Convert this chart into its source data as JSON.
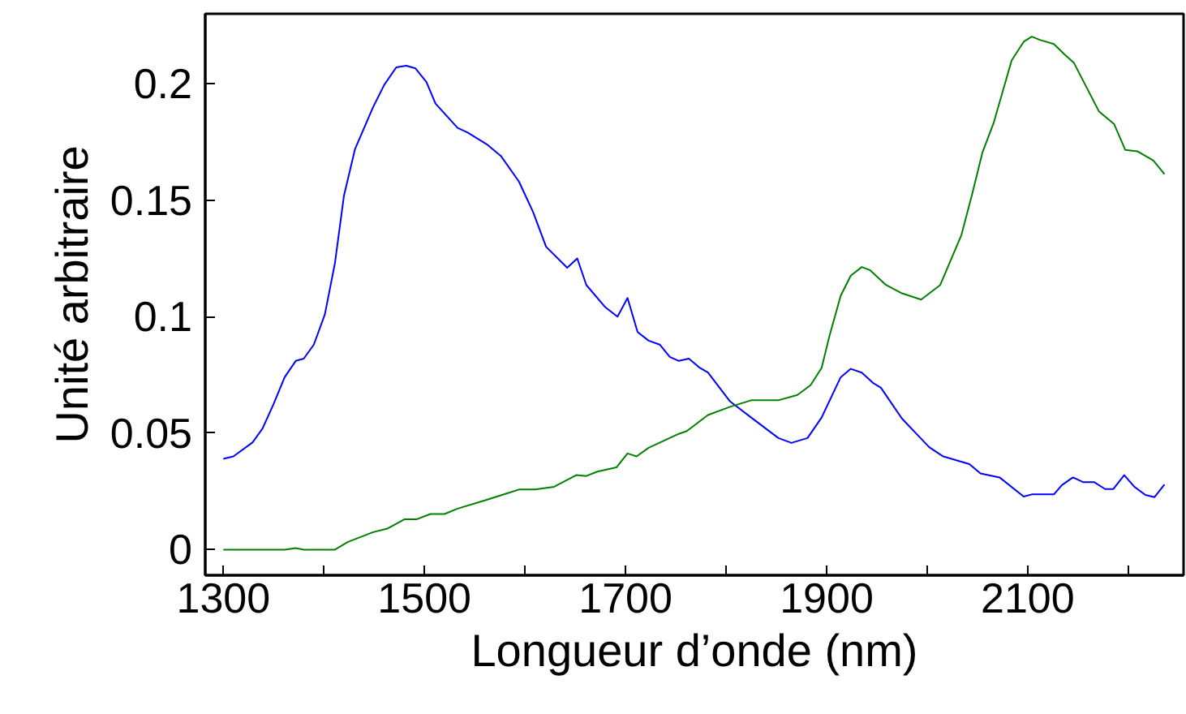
{
  "chart_data": {
    "type": "line",
    "xlabel": "Longueur d’onde (nm)",
    "ylabel": "Unité arbitraire",
    "xlim": [
      1282,
      2255
    ],
    "ylim": [
      -0.011,
      0.23
    ],
    "xticks": [
      1300,
      {
        "value": 1400,
        "label": null
      },
      1500,
      {
        "value": 1600,
        "label": null
      },
      1700,
      {
        "value": 1800,
        "label": null
      },
      1900,
      {
        "value": 2000,
        "label": null
      },
      2100,
      {
        "value": 2200,
        "label": null
      }
    ],
    "yticks": [
      0,
      0.05,
      0.1,
      0.15,
      0.2
    ],
    "grid": false,
    "marker": "none",
    "line_style": "solid",
    "series": [
      {
        "color": "#0000ff",
        "x": [
          1300,
          1310,
          1329,
          1339,
          1350,
          1361,
          1372,
          1380,
          1390,
          1401,
          1411,
          1420,
          1431,
          1449,
          1460,
          1472,
          1482,
          1491,
          1502,
          1511,
          1533,
          1543,
          1562,
          1576,
          1594,
          1608,
          1621,
          1642,
          1652,
          1661,
          1680,
          1692,
          1702,
          1712,
          1723,
          1734,
          1744,
          1753,
          1763,
          1774,
          1782,
          1804,
          1825,
          1852,
          1865,
          1881,
          1895,
          1914,
          1924,
          1935,
          1946,
          1954,
          1975,
          2002,
          2016,
          2042,
          2053,
          2072,
          2096,
          2104,
          2126,
          2134,
          2145,
          2155,
          2166,
          2177,
          2185,
          2196,
          2206,
          2217,
          2226,
          2236
        ],
        "values": [
          0.039,
          0.04,
          0.046,
          0.052,
          0.0625,
          0.074,
          0.081,
          0.082,
          0.088,
          0.101,
          0.123,
          0.152,
          0.172,
          0.19,
          0.1995,
          0.207,
          0.2077,
          0.2066,
          0.2007,
          0.1915,
          0.181,
          0.179,
          0.174,
          0.169,
          0.158,
          0.145,
          0.13,
          0.121,
          0.125,
          0.1136,
          0.104,
          0.1,
          0.108,
          0.0934,
          0.0897,
          0.088,
          0.0827,
          0.081,
          0.082,
          0.078,
          0.076,
          0.0636,
          0.0567,
          0.0479,
          0.0458,
          0.0479,
          0.0567,
          0.074,
          0.0776,
          0.076,
          0.0716,
          0.0695,
          0.0562,
          0.044,
          0.04,
          0.0367,
          0.0327,
          0.031,
          0.0228,
          0.0237,
          0.0237,
          0.0277,
          0.031,
          0.029,
          0.029,
          0.026,
          0.026,
          0.032,
          0.027,
          0.0235,
          0.0225,
          0.028
        ]
      },
      {
        "color": "#008000",
        "x": [
          1300,
          1361,
          1372,
          1380,
          1411,
          1424,
          1449,
          1463,
          1480,
          1492,
          1506,
          1520,
          1533,
          1562,
          1581,
          1594,
          1610,
          1629,
          1651,
          1661,
          1672,
          1691,
          1702,
          1711,
          1723,
          1753,
          1761,
          1782,
          1804,
          1825,
          1852,
          1871,
          1884,
          1895,
          1903,
          1914,
          1924,
          1935,
          1943,
          1959,
          1975,
          1994,
          2013,
          2034,
          2045,
          2055,
          2066,
          2084,
          2096,
          2104,
          2112,
          2126,
          2137,
          2146,
          2171,
          2186,
          2197,
          2209,
          2225,
          2236
        ],
        "values": [
          0.0,
          0.0,
          0.0007,
          0.0,
          0.0,
          0.0033,
          0.0075,
          0.009,
          0.013,
          0.013,
          0.0153,
          0.0153,
          0.0176,
          0.0214,
          0.024,
          0.0258,
          0.0258,
          0.027,
          0.032,
          0.0316,
          0.0335,
          0.0353,
          0.0413,
          0.04,
          0.0437,
          0.0497,
          0.0509,
          0.0578,
          0.0613,
          0.0641,
          0.0641,
          0.0664,
          0.0706,
          0.078,
          0.092,
          0.109,
          0.1176,
          0.1213,
          0.12,
          0.1136,
          0.11,
          0.1073,
          0.1136,
          0.135,
          0.153,
          0.1705,
          0.183,
          0.21,
          0.218,
          0.2202,
          0.2188,
          0.217,
          0.2124,
          0.2089,
          0.188,
          0.1826,
          0.1716,
          0.171,
          0.167,
          0.1612
        ]
      }
    ]
  }
}
